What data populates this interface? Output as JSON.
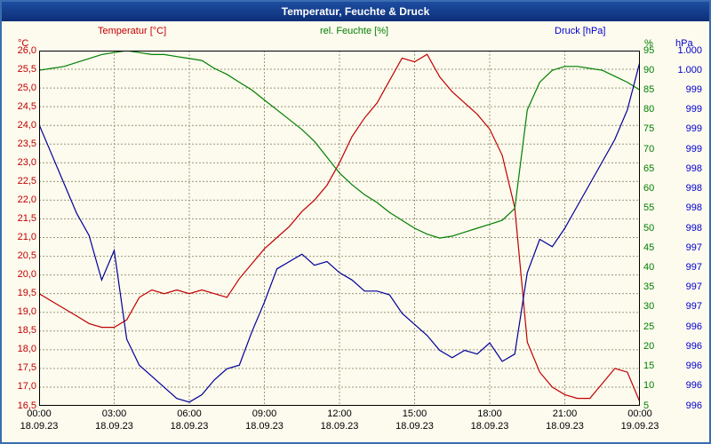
{
  "window": {
    "title": "Temperatur, Feuchte & Druck"
  },
  "legend": {
    "temperature": "Temperatur [°C]",
    "humidity": "rel. Feuchte [%]",
    "pressure": "Druck [hPa]"
  },
  "units": {
    "temperature": "°C",
    "humidity": "%",
    "pressure": "hPa"
  },
  "colors": {
    "temperature": "#c00000",
    "humidity": "#008000",
    "pressure": "#000099",
    "grid": "#9a9a78",
    "plot_border": "#000000",
    "background": "#fdfaee",
    "titlebar": "#0d2f78",
    "window_border": "#3a6cb0"
  },
  "chart_data": {
    "type": "line",
    "title": "Temperatur, Feuchte & Druck",
    "grid": true,
    "x_start_hour": 0,
    "x_step_hours": 0.5,
    "x_axis": {
      "tick_times": [
        "00:00",
        "03:00",
        "06:00",
        "09:00",
        "12:00",
        "15:00",
        "18:00",
        "21:00",
        "00:00"
      ],
      "tick_dates": [
        "18.09.23",
        "18.09.23",
        "18.09.23",
        "18.09.23",
        "18.09.23",
        "18.09.23",
        "18.09.23",
        "18.09.23",
        "19.09.23"
      ]
    },
    "axes": {
      "temperature": {
        "min": 16.5,
        "max": 26.0,
        "ticks": [
          "26,0",
          "25,5",
          "25,0",
          "24,5",
          "24,0",
          "23,5",
          "23,0",
          "22,5",
          "22,0",
          "21,5",
          "21,0",
          "20,5",
          "20,0",
          "19,5",
          "19,0",
          "18,5",
          "18,0",
          "17,5",
          "17,0",
          "16,5"
        ]
      },
      "humidity": {
        "min": 5,
        "max": 95,
        "ticks": [
          "95",
          "90",
          "85",
          "80",
          "75",
          "70",
          "65",
          "60",
          "55",
          "50",
          "45",
          "40",
          "35",
          "30",
          "25",
          "20",
          "15",
          "10",
          "5"
        ]
      },
      "pressure": {
        "min": 995.6,
        "max": 1000.4,
        "ticks": [
          "1.000",
          "1.000",
          "999",
          "999",
          "999",
          "999",
          "998",
          "998",
          "998",
          "998",
          "997",
          "997",
          "997",
          "997",
          "996",
          "996",
          "996",
          "996",
          "996"
        ]
      }
    },
    "series": [
      {
        "name": "Temperatur [°C]",
        "axis": "temperature",
        "color_key": "temperature",
        "values": [
          19.5,
          19.3,
          19.1,
          18.9,
          18.7,
          18.6,
          18.6,
          18.8,
          19.4,
          19.6,
          19.5,
          19.6,
          19.5,
          19.6,
          19.5,
          19.4,
          19.9,
          20.3,
          20.7,
          21.0,
          21.3,
          21.7,
          22.0,
          22.4,
          23.0,
          23.7,
          24.2,
          24.6,
          25.2,
          25.8,
          25.7,
          25.9,
          25.3,
          24.9,
          24.6,
          24.3,
          23.9,
          23.2,
          21.8,
          18.2,
          17.4,
          17.0,
          16.8,
          16.7,
          16.7,
          17.1,
          17.5,
          17.4,
          16.6
        ]
      },
      {
        "name": "rel. Feuchte [%]",
        "axis": "humidity",
        "color_key": "humidity",
        "values": [
          90,
          90.5,
          91,
          92,
          93,
          94,
          94.5,
          95,
          94.5,
          94,
          94,
          93.5,
          93,
          92.5,
          90.5,
          89,
          87,
          85,
          82.5,
          80,
          77.5,
          75,
          72,
          68,
          64,
          61,
          58.5,
          56.5,
          54,
          52,
          50,
          48.5,
          47.5,
          48,
          49,
          50,
          51,
          52,
          55,
          80,
          87,
          90,
          91,
          91,
          90.5,
          90,
          88.5,
          87,
          85
        ]
      },
      {
        "name": "Druck [hPa]",
        "axis": "pressure",
        "color_key": "pressure",
        "values": [
          999.4,
          999.0,
          998.6,
          998.2,
          997.9,
          997.3,
          997.7,
          996.5,
          996.15,
          996.0,
          995.85,
          995.7,
          995.65,
          995.75,
          995.95,
          996.1,
          996.15,
          996.6,
          997.0,
          997.45,
          997.55,
          997.65,
          997.5,
          997.55,
          997.4,
          997.3,
          997.15,
          997.15,
          997.1,
          996.85,
          996.7,
          996.55,
          996.35,
          996.25,
          996.35,
          996.3,
          996.45,
          996.2,
          996.3,
          997.4,
          997.85,
          997.75,
          998.0,
          998.3,
          998.6,
          998.9,
          999.2,
          999.6,
          1000.25
        ]
      }
    ]
  }
}
